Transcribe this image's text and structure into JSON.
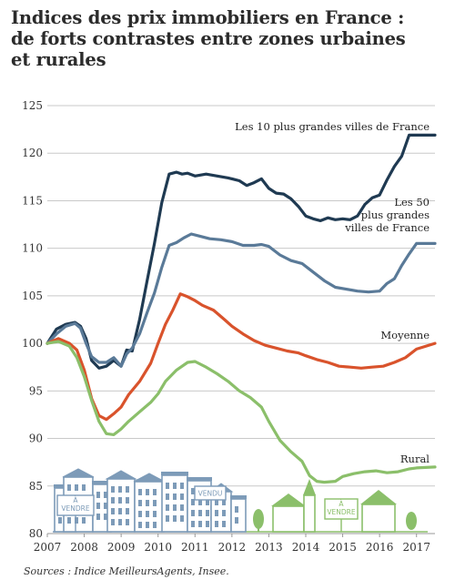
{
  "title": {
    "lines": [
      "Indices des prix immobiliers en France :",
      "de forts contrastes entre zones urbaines",
      "et rurales"
    ]
  },
  "source": "Sources : Indice MeilleursAgents, Insee.",
  "illustration": {
    "sign_left": [
      "À",
      "VENDRE"
    ],
    "sign_vendu": "VENDU",
    "sign_right": [
      "À",
      "VENDRE"
    ]
  },
  "chart_data": {
    "type": "line",
    "title": "Indices des prix immobiliers en France : de forts contrastes entre zones urbaines et rurales",
    "xlabel": "",
    "ylabel": "",
    "xlim": [
      2007,
      2017.5
    ],
    "ylim": [
      80,
      125
    ],
    "x_ticks": [
      "2007",
      "2008",
      "2009",
      "2010",
      "2011",
      "2012",
      "2013",
      "2014",
      "2015",
      "2016",
      "2017"
    ],
    "y_ticks": [
      80,
      85,
      90,
      95,
      100,
      105,
      110,
      115,
      120,
      125
    ],
    "grid": "horizontal",
    "legend": "direct labels at line ends",
    "colors": {
      "top10": "#1f3a52",
      "top50": "#5a7a98",
      "moyenne": "#d9532c",
      "rural": "#8bbf6a",
      "grid": "#c9c9c9",
      "town": "#7d9bb8",
      "village": "#8bbf6a"
    },
    "series": [
      {
        "name": "Les 10 plus grandes villes de France",
        "label_lines": [
          "Les 10 plus grandes villes de France"
        ],
        "x": [
          2007.0,
          2007.25,
          2007.5,
          2007.75,
          2007.9,
          2008.05,
          2008.2,
          2008.4,
          2008.6,
          2008.8,
          2009.0,
          2009.15,
          2009.3,
          2009.5,
          2009.7,
          2009.9,
          2010.1,
          2010.3,
          2010.5,
          2010.65,
          2010.8,
          2011.0,
          2011.3,
          2011.6,
          2011.9,
          2012.2,
          2012.4,
          2012.6,
          2012.8,
          2013.0,
          2013.2,
          2013.4,
          2013.6,
          2013.8,
          2014.0,
          2014.2,
          2014.4,
          2014.6,
          2014.8,
          2015.0,
          2015.2,
          2015.4,
          2015.6,
          2015.8,
          2016.0,
          2016.2,
          2016.4,
          2016.6,
          2016.8,
          2017.0,
          2017.5
        ],
        "values": [
          100.0,
          101.5,
          102.0,
          102.2,
          101.8,
          100.5,
          98.2,
          97.4,
          97.6,
          98.2,
          97.6,
          99.3,
          99.2,
          102.5,
          106.5,
          110.5,
          114.8,
          117.8,
          118.0,
          117.8,
          117.9,
          117.6,
          117.8,
          117.6,
          117.4,
          117.1,
          116.6,
          116.9,
          117.3,
          116.3,
          115.8,
          115.7,
          115.2,
          114.4,
          113.4,
          113.1,
          112.9,
          113.2,
          113.0,
          113.1,
          113.0,
          113.4,
          114.6,
          115.3,
          115.6,
          117.2,
          118.6,
          119.7,
          121.9,
          121.9,
          121.9
        ]
      },
      {
        "name": "Les 50 plus grandes villes de France",
        "label_lines": [
          "Les 50",
          "plus grandes",
          "villes de France"
        ],
        "x": [
          2007.0,
          2007.25,
          2007.5,
          2007.75,
          2007.9,
          2008.05,
          2008.2,
          2008.4,
          2008.6,
          2008.8,
          2009.0,
          2009.15,
          2009.3,
          2009.5,
          2009.7,
          2009.9,
          2010.1,
          2010.3,
          2010.5,
          2010.7,
          2010.9,
          2011.1,
          2011.4,
          2011.7,
          2012.0,
          2012.3,
          2012.6,
          2012.8,
          2013.0,
          2013.3,
          2013.6,
          2013.9,
          2014.2,
          2014.5,
          2014.8,
          2015.1,
          2015.4,
          2015.7,
          2016.0,
          2016.2,
          2016.4,
          2016.6,
          2016.8,
          2017.0,
          2017.5
        ],
        "values": [
          100.0,
          101.0,
          101.8,
          102.1,
          101.6,
          100.0,
          98.6,
          98.0,
          98.0,
          98.5,
          97.6,
          98.9,
          99.5,
          101.0,
          103.2,
          105.3,
          108.0,
          110.3,
          110.6,
          111.1,
          111.5,
          111.3,
          111.0,
          110.9,
          110.7,
          110.3,
          110.3,
          110.4,
          110.2,
          109.3,
          108.7,
          108.4,
          107.5,
          106.6,
          105.9,
          105.7,
          105.5,
          105.4,
          105.5,
          106.3,
          106.8,
          108.2,
          109.4,
          110.5,
          110.5
        ]
      },
      {
        "name": "Moyenne",
        "label_lines": [
          "Moyenne"
        ],
        "x": [
          2007.0,
          2007.3,
          2007.6,
          2007.8,
          2008.0,
          2008.2,
          2008.4,
          2008.6,
          2008.8,
          2009.0,
          2009.2,
          2009.5,
          2009.8,
          2010.0,
          2010.2,
          2010.4,
          2010.6,
          2010.8,
          2011.0,
          2011.2,
          2011.5,
          2011.8,
          2012.0,
          2012.3,
          2012.6,
          2012.9,
          2013.2,
          2013.5,
          2013.8,
          2014.0,
          2014.3,
          2014.6,
          2014.9,
          2015.2,
          2015.5,
          2015.8,
          2016.1,
          2016.4,
          2016.7,
          2017.0,
          2017.5
        ],
        "values": [
          100.0,
          100.5,
          100.0,
          99.3,
          97.2,
          94.2,
          92.4,
          92.0,
          92.6,
          93.3,
          94.6,
          96.0,
          97.9,
          100.0,
          102.0,
          103.5,
          105.2,
          104.9,
          104.5,
          104.0,
          103.5,
          102.5,
          101.8,
          101.0,
          100.3,
          99.8,
          99.5,
          99.2,
          99.0,
          98.7,
          98.3,
          98.0,
          97.6,
          97.5,
          97.4,
          97.5,
          97.6,
          98.0,
          98.5,
          99.4,
          100.0
        ]
      },
      {
        "name": "Rural",
        "label_lines": [
          "Rural"
        ],
        "x": [
          2007.0,
          2007.3,
          2007.6,
          2007.8,
          2008.0,
          2008.2,
          2008.4,
          2008.6,
          2008.8,
          2009.0,
          2009.2,
          2009.5,
          2009.8,
          2010.0,
          2010.2,
          2010.5,
          2010.8,
          2011.0,
          2011.3,
          2011.6,
          2011.9,
          2012.2,
          2012.5,
          2012.8,
          2013.0,
          2013.3,
          2013.6,
          2013.9,
          2014.1,
          2014.3,
          2014.5,
          2014.8,
          2015.0,
          2015.3,
          2015.6,
          2015.9,
          2016.2,
          2016.5,
          2016.8,
          2017.0,
          2017.5
        ],
        "values": [
          100.0,
          100.2,
          99.7,
          98.5,
          96.5,
          94.0,
          91.8,
          90.5,
          90.4,
          91.0,
          91.8,
          92.8,
          93.8,
          94.7,
          96.0,
          97.2,
          98.0,
          98.1,
          97.5,
          96.8,
          96.0,
          95.0,
          94.3,
          93.3,
          91.8,
          89.8,
          88.6,
          87.6,
          86.1,
          85.5,
          85.4,
          85.5,
          86.0,
          86.3,
          86.5,
          86.6,
          86.4,
          86.5,
          86.8,
          86.9,
          87.0
        ]
      }
    ]
  }
}
